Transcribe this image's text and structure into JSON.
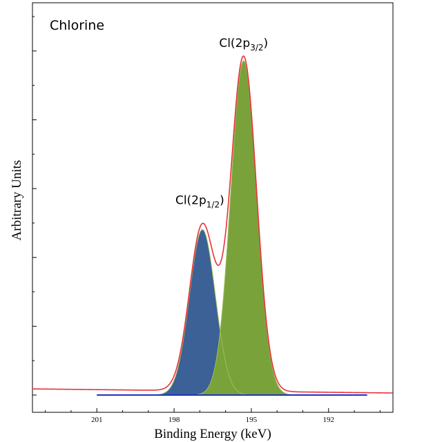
{
  "chart_data": {
    "type": "area",
    "title": "Chlorine",
    "xlabel": "Binding Energy (keV)",
    "ylabel": "Arbitrary Units",
    "x_reversed": true,
    "xlim": [
      203.5,
      189.5
    ],
    "ylim": [
      0,
      100
    ],
    "xticks": [
      201,
      198,
      195,
      192
    ],
    "xtick_labels": [
      "201",
      "198",
      "195",
      "192"
    ],
    "y_tick_count": 12,
    "grid": false,
    "series": [
      {
        "name": "Cl(2p1/2)",
        "type": "gaussian",
        "center": 196.9,
        "height": 48.5,
        "sigma": 0.5,
        "color": "#3b6197"
      },
      {
        "name": "Cl(2p3/2)",
        "type": "gaussian",
        "center": 195.3,
        "height": 98.0,
        "sigma": 0.5,
        "color": "#7aa23a"
      }
    ],
    "envelope": {
      "color": "#e8303a",
      "baseline_left": 1.8,
      "baseline_right": 0.6
    },
    "background_line": {
      "color": "#1f2fbf",
      "x_start": 201,
      "x_end": 190.5,
      "y": 0
    },
    "annotations": [
      {
        "key": "p12",
        "base": "Cl(2p",
        "sub": "1/2",
        "tail": ")",
        "x": 197.0,
        "y": 56
      },
      {
        "key": "p32",
        "base": "Cl(2p",
        "sub": "3/2",
        "tail": ")",
        "x": 195.3,
        "y": 102
      }
    ]
  }
}
